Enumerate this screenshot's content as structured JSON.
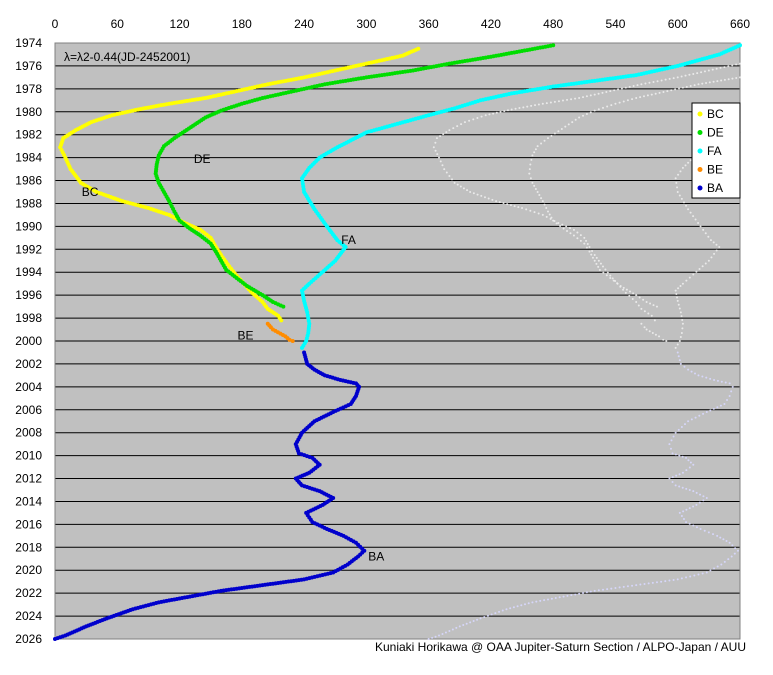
{
  "chart_data": {
    "type": "scatter",
    "annotation": "λ=λ2-0.44(JD-2452001)",
    "credit": "Kuniaki Horikawa @ OAA Jupiter-Saturn Section / ALPO-Japan / AUU",
    "xlim": [
      0,
      660
    ],
    "ylim": [
      1974,
      2026
    ],
    "x_ticks": [
      0,
      60,
      120,
      180,
      240,
      300,
      360,
      420,
      480,
      540,
      600,
      660
    ],
    "y_ticks": [
      1974,
      1976,
      1978,
      1980,
      1982,
      1984,
      1986,
      1988,
      1990,
      1992,
      1994,
      1996,
      1998,
      2000,
      2002,
      2004,
      2006,
      2008,
      2010,
      2012,
      2014,
      2016,
      2018,
      2020,
      2022,
      2024,
      2026
    ],
    "y_inverted": true,
    "grid": "horizontal",
    "legend_position": "right",
    "colors": {
      "BC": "#ffff00",
      "DE": "#00dd00",
      "FA": "#00ffff",
      "BE": "#ff8c00",
      "BA": "#0000cc"
    },
    "series": [
      {
        "name": "BC",
        "label": "BC",
        "points": [
          [
            350,
            1974.5
          ],
          [
            335,
            1975.1
          ],
          [
            300,
            1975.8
          ],
          [
            270,
            1976.4
          ],
          [
            240,
            1977.0
          ],
          [
            205,
            1977.6
          ],
          [
            175,
            1978.2
          ],
          [
            145,
            1978.8
          ],
          [
            110,
            1979.3
          ],
          [
            80,
            1979.8
          ],
          [
            55,
            1980.3
          ],
          [
            35,
            1980.9
          ],
          [
            20,
            1981.6
          ],
          [
            8,
            1982.3
          ],
          [
            5,
            1983.1
          ],
          [
            10,
            1984.0
          ],
          [
            15,
            1985.0
          ],
          [
            25,
            1986.2
          ],
          [
            40,
            1987.0
          ],
          [
            65,
            1987.8
          ],
          [
            90,
            1988.4
          ],
          [
            110,
            1989.0
          ],
          [
            125,
            1989.7
          ],
          [
            140,
            1990.3
          ],
          [
            150,
            1991.0
          ],
          [
            155,
            1991.8
          ],
          [
            160,
            1992.5
          ],
          [
            168,
            1993.5
          ],
          [
            175,
            1994.3
          ],
          [
            182,
            1995.0
          ],
          [
            190,
            1995.8
          ],
          [
            200,
            1996.6
          ],
          [
            205,
            1997.2
          ],
          [
            215,
            1997.8
          ],
          [
            218,
            1998.2
          ]
        ],
        "label_at": [
          20,
          1987
        ]
      },
      {
        "name": "DE",
        "label": "DE",
        "points": [
          [
            480,
            1974.2
          ],
          [
            450,
            1974.7
          ],
          [
            420,
            1975.2
          ],
          [
            380,
            1975.8
          ],
          [
            345,
            1976.4
          ],
          [
            300,
            1977.0
          ],
          [
            260,
            1977.6
          ],
          [
            230,
            1978.2
          ],
          [
            200,
            1978.8
          ],
          [
            180,
            1979.3
          ],
          [
            160,
            1979.9
          ],
          [
            145,
            1980.5
          ],
          [
            135,
            1981.1
          ],
          [
            125,
            1981.7
          ],
          [
            115,
            1982.3
          ],
          [
            105,
            1983.0
          ],
          [
            100,
            1983.8
          ],
          [
            98,
            1984.6
          ],
          [
            97,
            1985.4
          ],
          [
            100,
            1986.2
          ],
          [
            105,
            1987.0
          ],
          [
            110,
            1987.8
          ],
          [
            115,
            1988.7
          ],
          [
            120,
            1989.5
          ],
          [
            130,
            1990.2
          ],
          [
            140,
            1990.8
          ],
          [
            150,
            1991.5
          ],
          [
            155,
            1992.2
          ],
          [
            160,
            1993.0
          ],
          [
            165,
            1993.8
          ],
          [
            175,
            1994.5
          ],
          [
            185,
            1995.2
          ],
          [
            200,
            1996.0
          ],
          [
            210,
            1996.6
          ],
          [
            220,
            1997.0
          ]
        ],
        "label_at": [
          128,
          1984.1
        ]
      },
      {
        "name": "FA",
        "label": "FA",
        "points": [
          [
            660,
            1974.2
          ],
          [
            640,
            1975.0
          ],
          [
            600,
            1976.0
          ],
          [
            560,
            1976.8
          ],
          [
            520,
            1977.3
          ],
          [
            480,
            1977.8
          ],
          [
            440,
            1978.4
          ],
          [
            410,
            1979.0
          ],
          [
            385,
            1979.7
          ],
          [
            360,
            1980.3
          ],
          [
            340,
            1980.8
          ],
          [
            320,
            1981.3
          ],
          [
            300,
            1981.8
          ],
          [
            285,
            1982.5
          ],
          [
            270,
            1983.2
          ],
          [
            255,
            1984.0
          ],
          [
            245,
            1984.9
          ],
          [
            238,
            1985.8
          ],
          [
            240,
            1987.0
          ],
          [
            250,
            1988.5
          ],
          [
            262,
            1990.0
          ],
          [
            272,
            1991.2
          ],
          [
            280,
            1991.8
          ],
          [
            270,
            1993.0
          ],
          [
            255,
            1994.2
          ],
          [
            245,
            1995.0
          ],
          [
            238,
            1995.6
          ],
          [
            240,
            1996.5
          ],
          [
            243,
            1997.5
          ],
          [
            245,
            1998.5
          ],
          [
            244,
            1999.3
          ],
          [
            242,
            2000.0
          ],
          [
            238,
            2000.6
          ]
        ],
        "label_at": [
          270,
          1991.2
        ]
      },
      {
        "name": "BE",
        "label": "BE",
        "points": [
          [
            205,
            1998.5
          ],
          [
            208,
            1998.8
          ],
          [
            210,
            1999.0
          ],
          [
            222,
            1999.6
          ],
          [
            226,
            1999.9
          ],
          [
            229,
            2000.0
          ]
        ],
        "label_at": [
          170,
          1999.5
        ]
      },
      {
        "name": "BA",
        "label": "BA",
        "points": [
          [
            240,
            2001.0
          ],
          [
            243,
            2002.0
          ],
          [
            250,
            2002.5
          ],
          [
            260,
            2003.0
          ],
          [
            275,
            2003.4
          ],
          [
            290,
            2003.7
          ],
          [
            293,
            2004.0
          ],
          [
            290,
            2004.8
          ],
          [
            285,
            2005.5
          ],
          [
            268,
            2006.2
          ],
          [
            250,
            2007.0
          ],
          [
            238,
            2008.0
          ],
          [
            232,
            2009.0
          ],
          [
            235,
            2009.8
          ],
          [
            248,
            2010.2
          ],
          [
            255,
            2010.8
          ],
          [
            245,
            2011.5
          ],
          [
            232,
            2012.0
          ],
          [
            238,
            2012.6
          ],
          [
            255,
            2013.1
          ],
          [
            268,
            2013.7
          ],
          [
            258,
            2014.3
          ],
          [
            242,
            2015.0
          ],
          [
            248,
            2015.8
          ],
          [
            262,
            2016.4
          ],
          [
            278,
            2017.0
          ],
          [
            290,
            2017.6
          ],
          [
            298,
            2018.3
          ],
          [
            292,
            2018.8
          ],
          [
            282,
            2019.5
          ],
          [
            268,
            2020.2
          ],
          [
            240,
            2020.8
          ],
          [
            200,
            2021.3
          ],
          [
            160,
            2021.8
          ],
          [
            130,
            2022.3
          ],
          [
            100,
            2022.8
          ],
          [
            75,
            2023.4
          ],
          [
            50,
            2024.2
          ],
          [
            30,
            2024.9
          ],
          [
            10,
            2025.7
          ],
          [
            0,
            2026.0
          ]
        ],
        "label_at": [
          296,
          2018.8
        ]
      }
    ],
    "legend": [
      {
        "label": "BC",
        "color": "#ffff00"
      },
      {
        "label": "DE",
        "color": "#00dd00"
      },
      {
        "label": "FA",
        "color": "#00ffff"
      },
      {
        "label": "BE",
        "color": "#ff8c00"
      },
      {
        "label": "BA",
        "color": "#0000cc"
      }
    ]
  }
}
